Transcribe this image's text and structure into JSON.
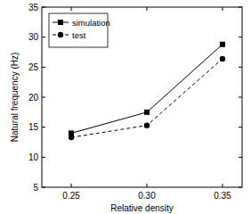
{
  "chart_data": {
    "type": "line",
    "x_label": "Relative density",
    "y_label": "Natural frequency (Hz)",
    "categories": [
      "0.25",
      "0.30",
      "0.35"
    ],
    "series": [
      {
        "name": "simulation",
        "color": "#000000",
        "marker": "square",
        "line_style": "solid",
        "values": [
          14.0,
          17.5,
          28.8
        ]
      },
      {
        "name": "test",
        "color": "#000000",
        "marker": "circle",
        "line_style": "dashed",
        "values": [
          13.3,
          15.3,
          26.4
        ]
      }
    ],
    "ylim": [
      5,
      35
    ],
    "yticks": [
      5,
      10,
      15,
      20,
      25,
      30,
      35
    ],
    "grid": false,
    "legend": "upper left"
  }
}
